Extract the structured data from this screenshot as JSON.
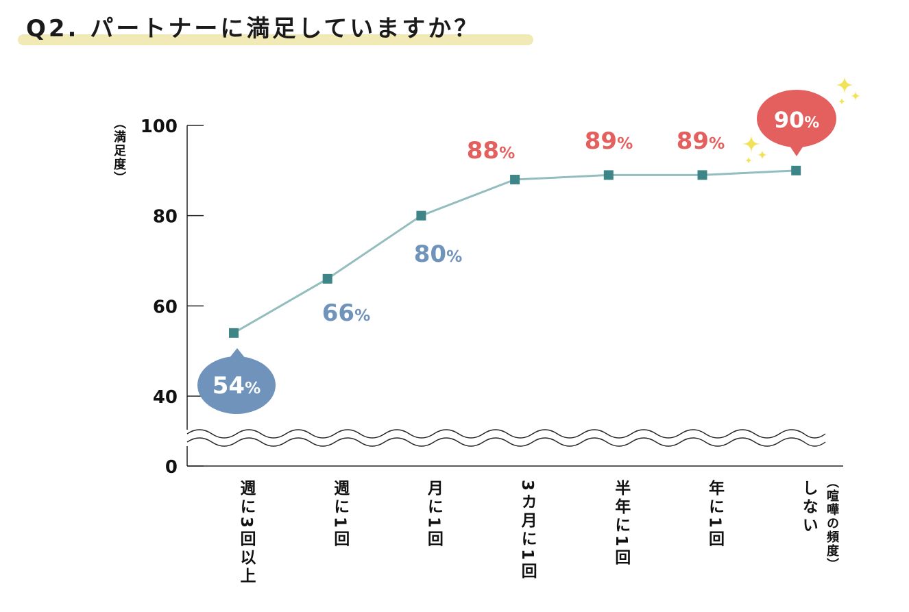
{
  "title": "Q2. パートナーに満足していますか？",
  "chart_data": {
    "type": "line",
    "ylabel": "（満足度）",
    "xlabel": "（喧嘩の頻度）",
    "categories": [
      "週に3回以上",
      "週に1回",
      "月に1回",
      "3カ月に1回",
      "半年に1回",
      "年に1回",
      "しない"
    ],
    "values": [
      54,
      66,
      80,
      88,
      89,
      89,
      90
    ],
    "data_labels": [
      "54%",
      "66%",
      "80%",
      "88%",
      "89%",
      "89%",
      "90%"
    ],
    "yticks": [
      "0",
      "40",
      "60",
      "80",
      "100"
    ],
    "ytick_values": [
      0,
      40,
      60,
      80,
      100
    ],
    "axis_break": true,
    "ylim": [
      40,
      100
    ],
    "grid": false,
    "colors": {
      "line": "#93bdbe",
      "marker": "#3d8587",
      "low": "#6f93bb",
      "high": "#e3605e",
      "sparkle": "#f2e25a"
    }
  }
}
